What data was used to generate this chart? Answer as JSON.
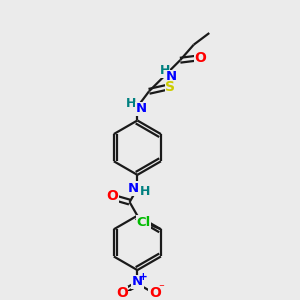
{
  "bg_color": "#ebebeb",
  "bond_color": "#1a1a1a",
  "atom_colors": {
    "N": "#0000ff",
    "O": "#ff0000",
    "S": "#cccc00",
    "Cl": "#00bb00",
    "H": "#008080",
    "C": "#1a1a1a"
  },
  "figsize": [
    3.0,
    3.0
  ],
  "dpi": 100
}
